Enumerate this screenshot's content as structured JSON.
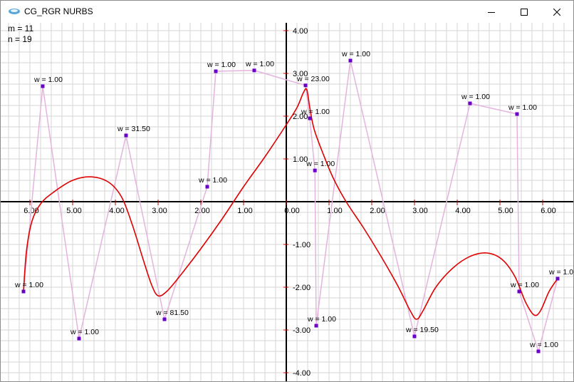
{
  "window": {
    "title": "CG_RGR NURBS",
    "minimize_icon": "minimize-icon",
    "maximize_icon": "maximize-icon",
    "close_icon": "close-icon"
  },
  "info": {
    "m_text": "m = 11",
    "n_text": "n = 19"
  },
  "colors": {
    "grid": "#d6d6d6",
    "axis": "#000000",
    "curve": "#e00000",
    "polygon": "#e4b4de",
    "point": "#6a00c8"
  },
  "x_ticks": [
    "6.00",
    "5.00",
    "4.00",
    "3.00",
    "2.00",
    "1.00",
    "0.00",
    "1.00",
    "2.00",
    "3.00",
    "4.00",
    "5.00",
    "6.00"
  ],
  "y_ticks": [
    "4.00",
    "3.00",
    "2.00",
    "1.00",
    "-1.00",
    "-2.00",
    "-3.00",
    "-4.00"
  ],
  "chart_data": {
    "type": "scatter",
    "title": "",
    "xlim": [
      -6.5,
      6.5
    ],
    "ylim": [
      -4,
      4
    ],
    "grid": true,
    "control_points": [
      {
        "x": -6.15,
        "y": -2.1,
        "w": "w = 1.00"
      },
      {
        "x": -5.7,
        "y": 2.7,
        "w": "w = 1.00"
      },
      {
        "x": -4.85,
        "y": -3.2,
        "w": "w = 1.00"
      },
      {
        "x": -3.75,
        "y": 1.55,
        "w": "w = 31.50"
      },
      {
        "x": -2.85,
        "y": -2.75,
        "w": "w = 81.50"
      },
      {
        "x": -1.85,
        "y": 0.35,
        "w": "w = 1.00"
      },
      {
        "x": -1.65,
        "y": 3.05,
        "w": "w = 1.00"
      },
      {
        "x": -0.75,
        "y": 3.07,
        "w": "w = 1.00"
      },
      {
        "x": 0.45,
        "y": 2.72,
        "w": "w = 23.00"
      },
      {
        "x": 0.55,
        "y": 1.95,
        "w": "w = 1.00"
      },
      {
        "x": 0.67,
        "y": 0.73,
        "w": "w = 1.00"
      },
      {
        "x": 0.7,
        "y": -2.9,
        "w": "w = 1.00"
      },
      {
        "x": 1.5,
        "y": 3.3,
        "w": "w = 1.00"
      },
      {
        "x": 3.0,
        "y": -3.15,
        "w": "w = 19.50"
      },
      {
        "x": 4.3,
        "y": 2.3,
        "w": "w = 1.00"
      },
      {
        "x": 5.4,
        "y": 2.05,
        "w": "w = 1.00"
      },
      {
        "x": 5.45,
        "y": -2.1,
        "w": "w = 1.00"
      },
      {
        "x": 5.9,
        "y": -3.5,
        "w": "w = 1.00"
      },
      {
        "x": 6.35,
        "y": -1.8,
        "w": "w = 1.0"
      }
    ],
    "curve": [
      [
        -6.15,
        -2.1
      ],
      [
        -6.08,
        -1.15
      ],
      [
        -5.95,
        -0.45
      ],
      [
        -5.75,
        -0.05
      ],
      [
        -5.45,
        0.22
      ],
      [
        -5.0,
        0.5
      ],
      [
        -4.55,
        0.58
      ],
      [
        -4.15,
        0.45
      ],
      [
        -3.85,
        0.1
      ],
      [
        -3.6,
        -0.55
      ],
      [
        -3.35,
        -1.35
      ],
      [
        -3.15,
        -1.95
      ],
      [
        -3.0,
        -2.2
      ],
      [
        -2.8,
        -2.1
      ],
      [
        -2.5,
        -1.75
      ],
      [
        -2.0,
        -1.1
      ],
      [
        -1.5,
        -0.4
      ],
      [
        -1.0,
        0.35
      ],
      [
        -0.5,
        1.05
      ],
      [
        0.0,
        1.8
      ],
      [
        0.25,
        2.2
      ],
      [
        0.4,
        2.55
      ],
      [
        0.48,
        2.62
      ],
      [
        0.55,
        2.2
      ],
      [
        0.65,
        1.7
      ],
      [
        0.85,
        1.15
      ],
      [
        1.1,
        0.55
      ],
      [
        1.4,
        0.0
      ],
      [
        1.8,
        -0.6
      ],
      [
        2.2,
        -1.25
      ],
      [
        2.6,
        -1.95
      ],
      [
        2.9,
        -2.55
      ],
      [
        3.05,
        -2.75
      ],
      [
        3.2,
        -2.55
      ],
      [
        3.5,
        -2.0
      ],
      [
        3.9,
        -1.55
      ],
      [
        4.3,
        -1.28
      ],
      [
        4.7,
        -1.2
      ],
      [
        5.05,
        -1.35
      ],
      [
        5.35,
        -1.75
      ],
      [
        5.6,
        -2.35
      ],
      [
        5.8,
        -2.65
      ],
      [
        5.95,
        -2.55
      ],
      [
        6.15,
        -2.1
      ],
      [
        6.35,
        -1.8
      ]
    ]
  }
}
